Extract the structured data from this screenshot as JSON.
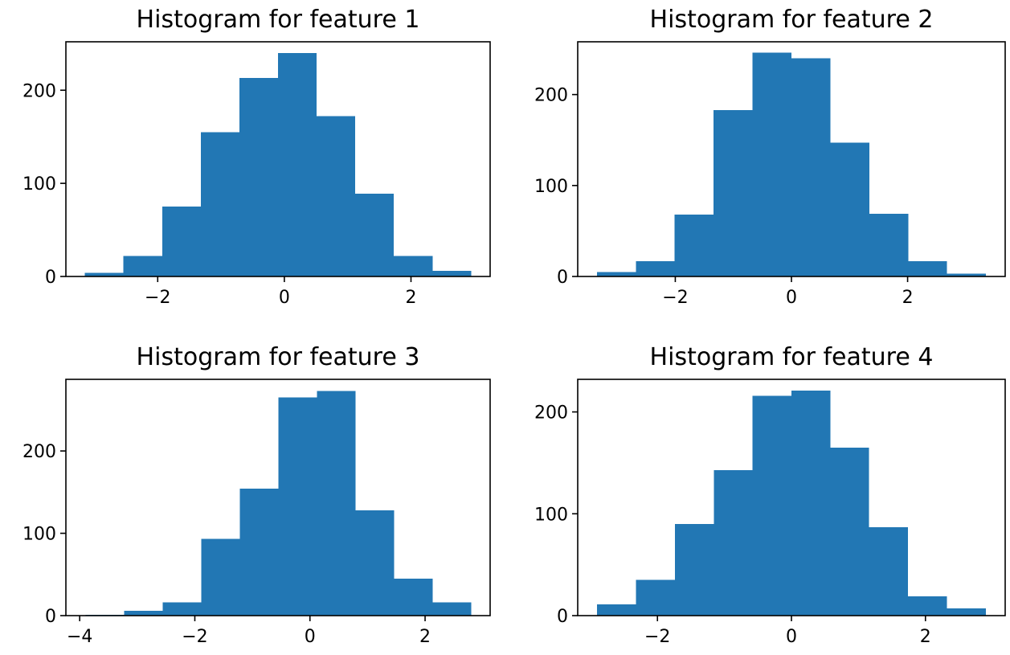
{
  "chart_data": [
    {
      "type": "bar",
      "title": "Histogram for feature 1",
      "xlabel": "",
      "ylabel": "",
      "color": "#2277b4",
      "bin_edges": [
        -3.15,
        -2.54,
        -1.93,
        -1.32,
        -0.71,
        -0.1,
        0.51,
        1.12,
        1.73,
        2.34,
        2.95
      ],
      "values": [
        4,
        22,
        75,
        155,
        213,
        240,
        172,
        89,
        22,
        6
      ],
      "xlim": [
        -3.45,
        3.25
      ],
      "ylim": [
        0,
        252
      ],
      "xticks": [
        -2,
        0,
        2
      ],
      "xtick_labels": [
        "−2",
        "0",
        "2"
      ],
      "yticks": [
        0,
        100,
        200
      ],
      "ytick_labels": [
        "0",
        "100",
        "200"
      ]
    },
    {
      "type": "bar",
      "title": "Histogram for feature 2",
      "xlabel": "",
      "ylabel": "",
      "color": "#2277b4",
      "bin_edges": [
        -3.35,
        -2.68,
        -2.01,
        -1.34,
        -0.67,
        0.0,
        0.67,
        1.34,
        2.01,
        2.68,
        3.35
      ],
      "values": [
        5,
        17,
        68,
        183,
        246,
        240,
        147,
        69,
        17,
        3
      ],
      "xlim": [
        -3.68,
        3.68
      ],
      "ylim": [
        0,
        258
      ],
      "xticks": [
        -2,
        0,
        2
      ],
      "xtick_labels": [
        "−2",
        "0",
        "2"
      ],
      "yticks": [
        0,
        100,
        200
      ],
      "ytick_labels": [
        "0",
        "100",
        "200"
      ]
    },
    {
      "type": "bar",
      "title": "Histogram for feature 3",
      "xlabel": "",
      "ylabel": "",
      "color": "#2277b4",
      "bin_edges": [
        -3.9,
        -3.23,
        -2.56,
        -1.89,
        -1.22,
        -0.55,
        0.12,
        0.79,
        1.46,
        2.13,
        2.8
      ],
      "values": [
        1,
        6,
        16,
        93,
        154,
        265,
        273,
        128,
        45,
        16
      ],
      "xlim": [
        -4.24,
        3.13
      ],
      "ylim": [
        0,
        287
      ],
      "xticks": [
        -4,
        -2,
        0,
        2
      ],
      "xtick_labels": [
        "−4",
        "−2",
        "0",
        "2"
      ],
      "yticks": [
        0,
        100,
        200
      ],
      "ytick_labels": [
        "0",
        "100",
        "200"
      ]
    },
    {
      "type": "bar",
      "title": "Histogram for feature 4",
      "xlabel": "",
      "ylabel": "",
      "color": "#2277b4",
      "bin_edges": [
        -2.9,
        -2.32,
        -1.74,
        -1.16,
        -0.58,
        0.0,
        0.58,
        1.16,
        1.74,
        2.32,
        2.9
      ],
      "values": [
        11,
        35,
        90,
        143,
        216,
        221,
        165,
        87,
        19,
        7
      ],
      "xlim": [
        -3.19,
        3.19
      ],
      "ylim": [
        0,
        232
      ],
      "xticks": [
        -2,
        0,
        2
      ],
      "xtick_labels": [
        "−2",
        "0",
        "2"
      ],
      "yticks": [
        0,
        100,
        200
      ],
      "ytick_labels": [
        "0",
        "100",
        "200"
      ]
    }
  ]
}
